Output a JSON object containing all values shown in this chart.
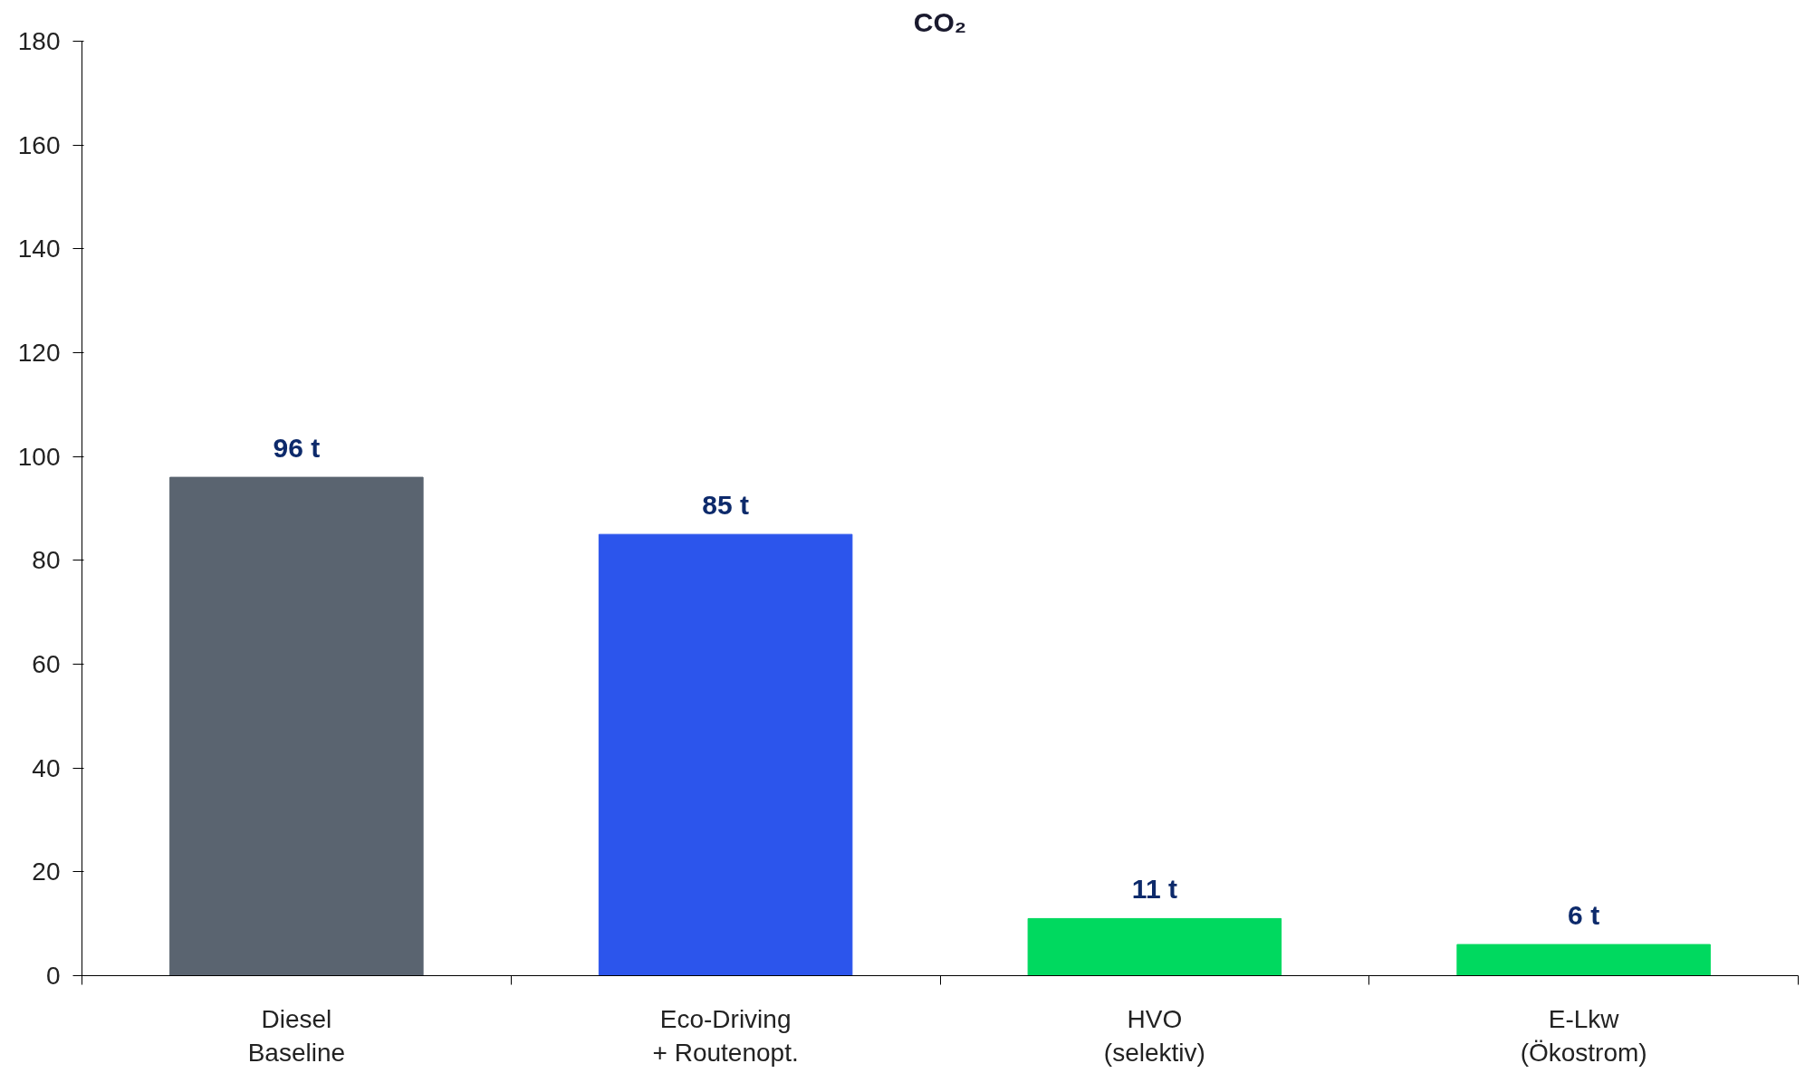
{
  "chart_data": {
    "type": "bar",
    "title": "CO₂",
    "categories": [
      "Diesel\nBaseline",
      "Eco-Driving\n+ Routenopt.",
      "HVO\n(selektiv)",
      "E-Lkw\n(Ökostrom)"
    ],
    "values": [
      96,
      85,
      11,
      6
    ],
    "colors": [
      "#5a6470",
      "#2c55ec",
      "#00d95f",
      "#00d95f"
    ],
    "value_labels": [
      "96 t",
      "85 t",
      "11 t",
      "6 t"
    ],
    "ylim": [
      0,
      180
    ],
    "yticks": [
      0,
      20,
      40,
      60,
      80,
      100,
      120,
      140,
      160,
      180
    ],
    "grid": false
  }
}
